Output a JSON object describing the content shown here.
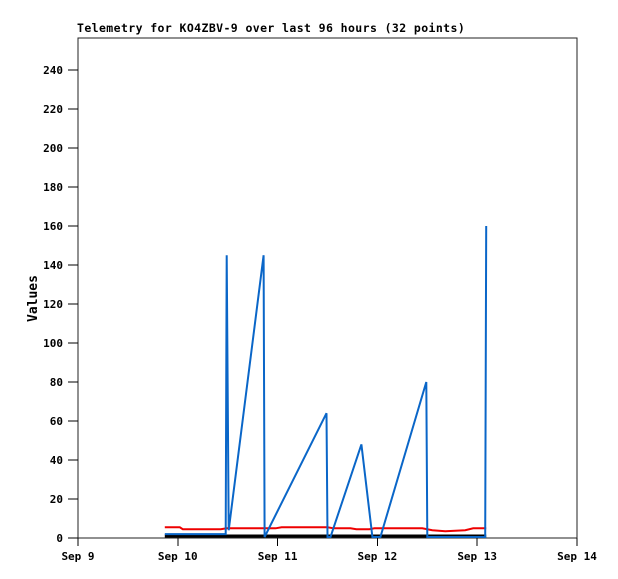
{
  "chart_data": {
    "type": "line",
    "title": "Telemetry for KO4ZBV-9 over last 96 hours (32 points)",
    "ylabel": "Values",
    "xlabel": "",
    "ylim": [
      0,
      240
    ],
    "ytick_step": 20,
    "grid": false,
    "legend": false,
    "x_axis": {
      "unit": "days since Sep 9",
      "range": [
        0,
        5
      ],
      "tick_positions": [
        0,
        1,
        2,
        3,
        4,
        5
      ],
      "tick_labels": [
        "Sep 9",
        "Sep 10",
        "Sep 11",
        "Sep 12",
        "Sep 13",
        "Sep 14"
      ]
    },
    "series": [
      {
        "name": "black-baseline",
        "color": "#000000",
        "stroke_width": 3,
        "points": [
          [
            0.87,
            1
          ],
          [
            4.09,
            1
          ]
        ]
      },
      {
        "name": "red",
        "color": "#ee0000",
        "stroke_width": 2,
        "points": [
          [
            0.87,
            5.5
          ],
          [
            1.02,
            5.5
          ],
          [
            1.05,
            4.5
          ],
          [
            1.43,
            4.5
          ],
          [
            1.49,
            5
          ],
          [
            1.98,
            5
          ],
          [
            2.04,
            5.5
          ],
          [
            2.5,
            5.5
          ],
          [
            2.56,
            5
          ],
          [
            2.73,
            5
          ],
          [
            2.79,
            4.5
          ],
          [
            2.92,
            4.5
          ],
          [
            2.97,
            5
          ],
          [
            3.45,
            5
          ],
          [
            3.55,
            4
          ],
          [
            3.68,
            3.5
          ],
          [
            3.88,
            4
          ],
          [
            3.96,
            5
          ],
          [
            4.09,
            5
          ]
        ]
      },
      {
        "name": "blue",
        "color": "#0a66c8",
        "stroke_width": 2,
        "points": [
          [
            0.87,
            2
          ],
          [
            1.48,
            2
          ],
          [
            1.49,
            145
          ],
          [
            1.51,
            4
          ],
          [
            1.86,
            145
          ],
          [
            1.87,
            0.5
          ],
          [
            2.49,
            64
          ],
          [
            2.5,
            0.5
          ],
          [
            2.53,
            0.5
          ],
          [
            2.84,
            48
          ],
          [
            2.95,
            0.5
          ],
          [
            3.03,
            0.5
          ],
          [
            3.49,
            80
          ],
          [
            3.5,
            0.5
          ],
          [
            4.08,
            0.5
          ],
          [
            4.09,
            160
          ]
        ]
      }
    ]
  }
}
